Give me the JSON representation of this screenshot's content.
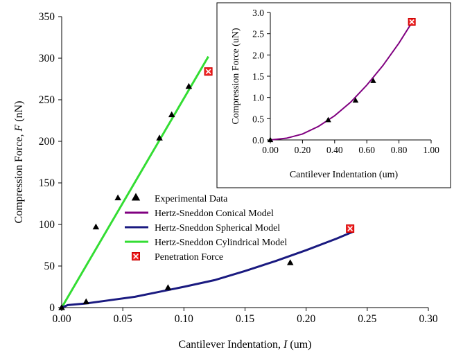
{
  "chart_data": [
    {
      "type": "line",
      "role": "main",
      "xlabel": "Cantilever Indentation,",
      "xlabel_var": "I",
      "xlabel_unit": "(um)",
      "ylabel": "Compression Force,",
      "ylabel_var": "F",
      "ylabel_unit": "(nN)",
      "xlim": [
        0,
        0.3
      ],
      "ylim": [
        0,
        350
      ],
      "xticks": [
        0.0,
        0.05,
        0.1,
        0.15,
        0.2,
        0.25,
        0.3
      ],
      "xtick_labels": [
        "0.00",
        "0.05",
        "0.10",
        "0.15",
        "0.20",
        "0.25",
        "0.30"
      ],
      "yticks": [
        0,
        50,
        100,
        150,
        200,
        250,
        300,
        350
      ],
      "ytick_labels": [
        "0",
        "50",
        "100",
        "150",
        "200",
        "250",
        "300",
        "350"
      ],
      "grid": false,
      "legend_position": "center",
      "legend": [
        {
          "label": "Experimental Data",
          "marker": "triangle",
          "color": "#000000"
        },
        {
          "label": "Hertz-Sneddon Conical Model",
          "marker": "line",
          "color": "#800080"
        },
        {
          "label": "Hertz-Sneddon Spherical Model",
          "marker": "line",
          "color": "#1a1a80"
        },
        {
          "label": "Hertz-Sneddon Cylindrical Model",
          "marker": "line",
          "color": "#33dd33"
        },
        {
          "label": "Penetration Force",
          "marker": "boxed-x",
          "color": "#ee2222"
        }
      ],
      "series": [
        {
          "kind": "scatter",
          "color": "#000000",
          "points": [
            [
              0.0,
              0
            ],
            [
              0.02,
              7
            ],
            [
              0.028,
              97
            ],
            [
              0.046,
              132
            ],
            [
              0.087,
              24
            ],
            [
              0.08,
              204
            ],
            [
              0.09,
              232
            ],
            [
              0.104,
              266
            ],
            [
              0.187,
              54
            ]
          ]
        },
        {
          "kind": "line",
          "color": "#33dd33",
          "points": [
            [
              0.0,
              0
            ],
            [
              0.12,
              302
            ]
          ]
        },
        {
          "kind": "line",
          "color": "#1a1a80",
          "points": [
            [
              0.0,
              0
            ],
            [
              0.005,
              3
            ],
            [
              0.02,
              5
            ],
            [
              0.04,
              9
            ],
            [
              0.06,
              13
            ],
            [
              0.08,
              19
            ],
            [
              0.1,
              25
            ],
            [
              0.125,
              33
            ],
            [
              0.15,
              44
            ],
            [
              0.175,
              56
            ],
            [
              0.2,
              69
            ],
            [
              0.225,
              83
            ],
            [
              0.238,
              91
            ]
          ]
        },
        {
          "kind": "penetration",
          "color": "#ee2222",
          "points": [
            [
              0.12,
              284
            ],
            [
              0.236,
              95
            ]
          ]
        }
      ]
    },
    {
      "type": "line",
      "role": "inset",
      "xlabel": "Cantilever Indentation (um)",
      "ylabel": "Compression Force (uN)",
      "xlim": [
        0,
        1
      ],
      "ylim": [
        0,
        3
      ],
      "xticks": [
        0,
        0.2,
        0.4,
        0.6,
        0.8,
        1.0
      ],
      "xtick_labels": [
        "0.00",
        "0.20",
        "0.40",
        "0.60",
        "0.80",
        "1.00"
      ],
      "yticks": [
        0,
        0.5,
        1,
        1.5,
        2,
        2.5,
        3
      ],
      "ytick_labels": [
        "0.0",
        "0.5",
        "1.0",
        "1.5",
        "2.0",
        "2.5",
        "3.0"
      ],
      "grid": false,
      "series": [
        {
          "kind": "scatter",
          "color": "#000000",
          "points": [
            [
              0.0,
              0.0
            ],
            [
              0.36,
              0.47
            ],
            [
              0.53,
              0.93
            ],
            [
              0.64,
              1.39
            ]
          ]
        },
        {
          "kind": "line",
          "color": "#800080",
          "points": [
            [
              0.0,
              0.0
            ],
            [
              0.1,
              0.04
            ],
            [
              0.2,
              0.14
            ],
            [
              0.3,
              0.32
            ],
            [
              0.4,
              0.57
            ],
            [
              0.5,
              0.89
            ],
            [
              0.6,
              1.29
            ],
            [
              0.7,
              1.75
            ],
            [
              0.8,
              2.28
            ],
            [
              0.88,
              2.76
            ]
          ]
        },
        {
          "kind": "penetration",
          "color": "#ee2222",
          "points": [
            [
              0.88,
              2.78
            ]
          ]
        }
      ]
    }
  ]
}
